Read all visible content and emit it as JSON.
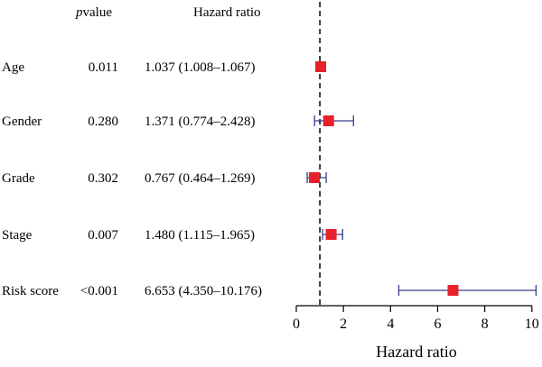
{
  "chart_data": {
    "type": "forest",
    "columns": {
      "pvalue_prefix": "p",
      "pvalue_suffix": "value",
      "hazard_ratio": "Hazard ratio"
    },
    "xlabel": "Hazard ratio",
    "xlim": [
      0,
      10.2
    ],
    "xticks": [
      0,
      2,
      4,
      6,
      8,
      10
    ],
    "xtick_labels": [
      "0",
      "2",
      "4",
      "6",
      "8",
      "10"
    ],
    "reference_line": 1,
    "rows": [
      {
        "label": "Age",
        "pvalue": "0.011",
        "hr_text": "1.037 (1.008–1.067)",
        "hr": 1.037,
        "lower": 1.008,
        "upper": 1.067
      },
      {
        "label": "Gender",
        "pvalue": "0.280",
        "hr_text": "1.371 (0.774–2.428)",
        "hr": 1.371,
        "lower": 0.774,
        "upper": 2.428
      },
      {
        "label": "Grade",
        "pvalue": "0.302",
        "hr_text": "0.767 (0.464–1.269)",
        "hr": 0.767,
        "lower": 0.464,
        "upper": 1.269
      },
      {
        "label": "Stage",
        "pvalue": "0.007",
        "hr_text": "1.480 (1.115–1.965)",
        "hr": 1.48,
        "lower": 1.115,
        "upper": 1.965
      },
      {
        "label": "Risk score",
        "pvalue": "<0.001",
        "hr_text": "6.653 (4.350–10.176)",
        "hr": 6.653,
        "lower": 4.35,
        "upper": 10.176
      }
    ],
    "colors": {
      "marker": "#e8202a",
      "ci": "#3a3e8f",
      "axis": "#000000"
    }
  }
}
